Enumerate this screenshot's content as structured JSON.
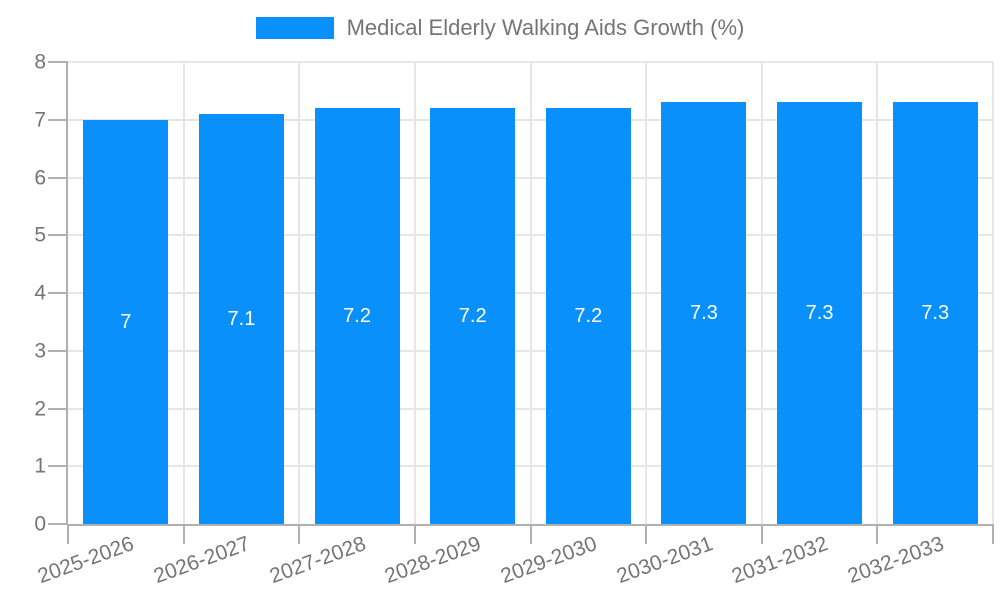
{
  "legend": {
    "label": "Medical Elderly Walking Aids Growth (%)"
  },
  "chart_data": {
    "type": "bar",
    "title": "Medical Elderly Walking Aids Growth (%)",
    "categories": [
      "2025-2026",
      "2026-2027",
      "2027-2028",
      "2028-2029",
      "2029-2030",
      "2030-2031",
      "2031-2032",
      "2032-2033"
    ],
    "values": [
      7,
      7.1,
      7.2,
      7.2,
      7.2,
      7.3,
      7.3,
      7.3
    ],
    "value_labels": [
      "7",
      "7.1",
      "7.2",
      "7.2",
      "7.2",
      "7.3",
      "7.3",
      "7.3"
    ],
    "xlabel": "",
    "ylabel": "",
    "ylim": [
      0,
      8
    ],
    "y_ticks": [
      0,
      1,
      2,
      3,
      4,
      5,
      6,
      7,
      8
    ],
    "y_tick_labels": [
      "0",
      "1",
      "2",
      "3",
      "4",
      "5",
      "6",
      "7",
      "8"
    ],
    "grid": true,
    "legend_position": "top-center",
    "colors": {
      "bar": "#0990fa",
      "grid": "#e6e6e6",
      "axis": "#b0b0b0",
      "text": "#757575",
      "value_label": "#ffffff"
    }
  }
}
